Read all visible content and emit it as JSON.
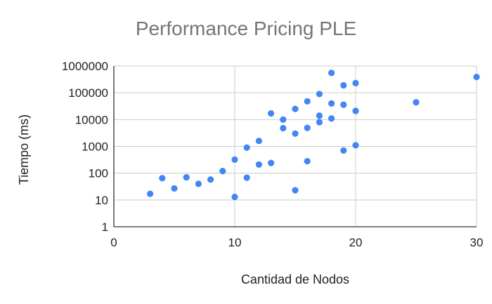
{
  "chart_data": {
    "type": "scatter",
    "title": "Performance Pricing PLE",
    "xlabel": "Cantidad de Nodos",
    "ylabel": "Tiempo (ms)",
    "xlim": [
      0,
      30
    ],
    "ylim": [
      1,
      1000000
    ],
    "y_scale": "log",
    "x_ticks": [
      "0",
      "10",
      "20",
      "30"
    ],
    "y_ticks": [
      "1",
      "10",
      "100",
      "1000",
      "10000",
      "100000",
      "1000000"
    ],
    "grid": true,
    "legend": "none",
    "series": [
      {
        "color": "#4285f4",
        "points": [
          {
            "x": 3,
            "y": 17
          },
          {
            "x": 4,
            "y": 65
          },
          {
            "x": 5,
            "y": 27
          },
          {
            "x": 6,
            "y": 70
          },
          {
            "x": 7,
            "y": 40
          },
          {
            "x": 8,
            "y": 58
          },
          {
            "x": 9,
            "y": 120
          },
          {
            "x": 10,
            "y": 13
          },
          {
            "x": 10,
            "y": 320
          },
          {
            "x": 11,
            "y": 68
          },
          {
            "x": 11,
            "y": 900
          },
          {
            "x": 12,
            "y": 210
          },
          {
            "x": 12,
            "y": 1600
          },
          {
            "x": 13,
            "y": 240
          },
          {
            "x": 13,
            "y": 17000
          },
          {
            "x": 14,
            "y": 4800
          },
          {
            "x": 14,
            "y": 10000
          },
          {
            "x": 15,
            "y": 23
          },
          {
            "x": 15,
            "y": 3000
          },
          {
            "x": 15,
            "y": 25000
          },
          {
            "x": 16,
            "y": 280
          },
          {
            "x": 16,
            "y": 4900
          },
          {
            "x": 16,
            "y": 48000
          },
          {
            "x": 17,
            "y": 8000
          },
          {
            "x": 17,
            "y": 14000
          },
          {
            "x": 17,
            "y": 90000
          },
          {
            "x": 18,
            "y": 11000
          },
          {
            "x": 18,
            "y": 40000
          },
          {
            "x": 18,
            "y": 550000
          },
          {
            "x": 19,
            "y": 700
          },
          {
            "x": 19,
            "y": 36000
          },
          {
            "x": 19,
            "y": 190000
          },
          {
            "x": 20,
            "y": 1100
          },
          {
            "x": 20,
            "y": 21000
          },
          {
            "x": 20,
            "y": 230000
          },
          {
            "x": 25,
            "y": 44000
          },
          {
            "x": 30,
            "y": 390000
          }
        ]
      }
    ]
  }
}
